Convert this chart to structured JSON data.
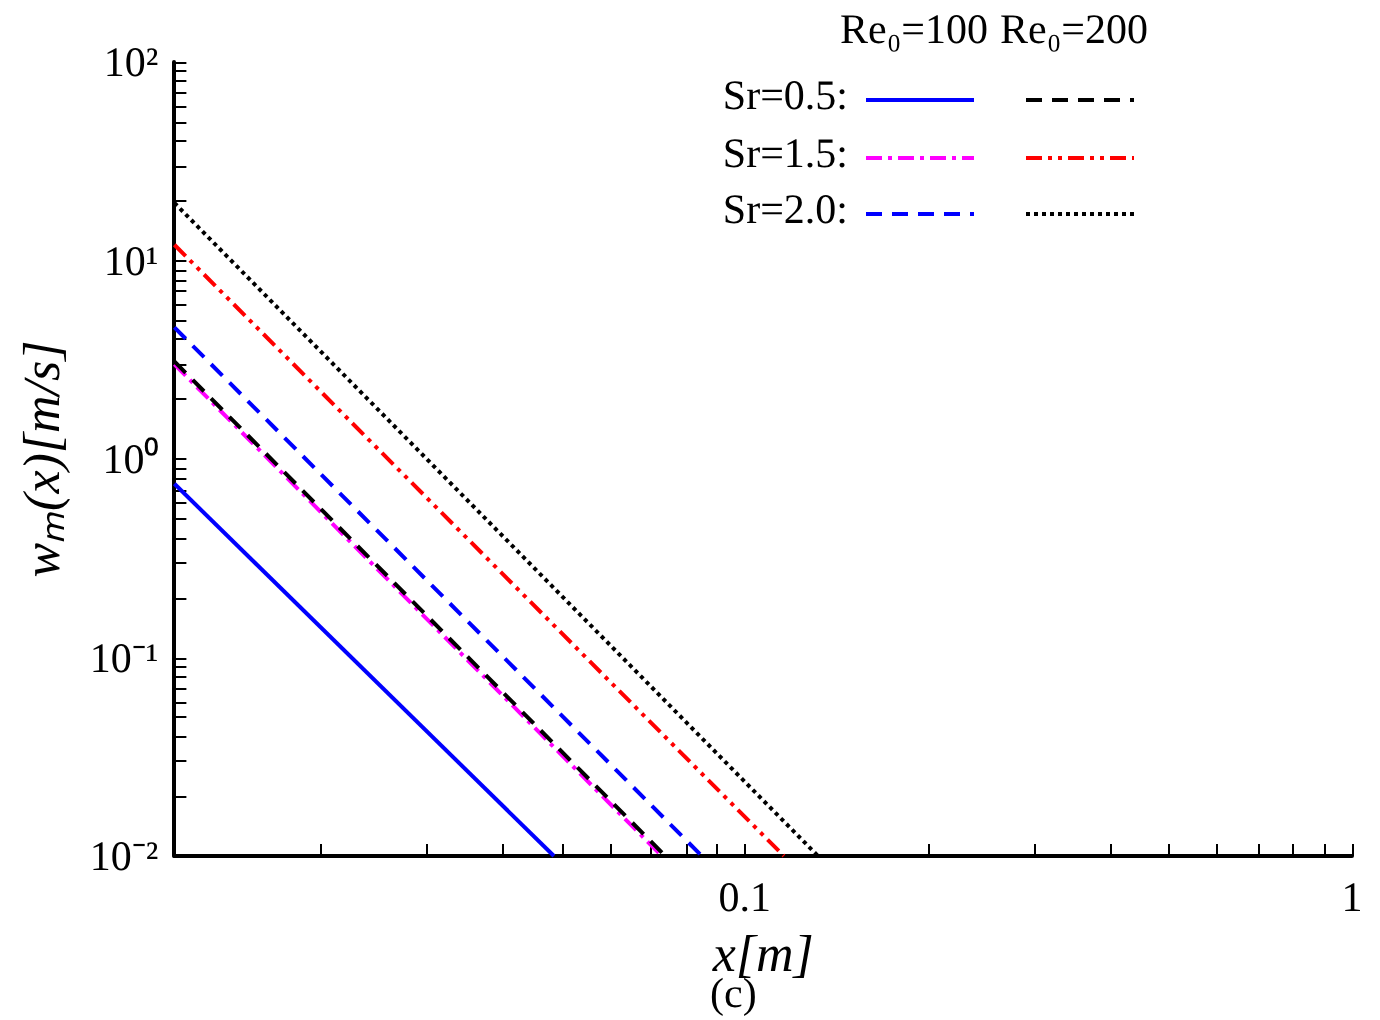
{
  "chart_data": {
    "type": "line",
    "xlabel": "x[m]",
    "ylabel": "wₘ(x)[m/s]",
    "log": "xy",
    "grid": false,
    "marker": "none",
    "xlim": [
      0.0115,
      1
    ],
    "ylim": [
      0.01,
      100
    ],
    "xticks": [
      {
        "value": 0.02,
        "label": null
      },
      {
        "value": 0.03,
        "label": null
      },
      {
        "value": 0.04,
        "label": null
      },
      {
        "value": 0.05,
        "label": null
      },
      {
        "value": 0.06,
        "label": null
      },
      {
        "value": 0.07,
        "label": null
      },
      {
        "value": 0.08,
        "label": null
      },
      {
        "value": 0.09,
        "label": null
      },
      0.1,
      {
        "value": 0.2,
        "label": null
      },
      {
        "value": 0.3,
        "label": null
      },
      {
        "value": 0.4,
        "label": null
      },
      {
        "value": 0.5,
        "label": null
      },
      {
        "value": 0.6,
        "label": null
      },
      {
        "value": 0.7,
        "label": null
      },
      {
        "value": 0.8,
        "label": null
      },
      {
        "value": 0.9,
        "label": null
      },
      1
    ],
    "yticks": [
      {
        "value": 0.01,
        "label": "10⁻²"
      },
      {
        "value": 0.02,
        "label": null
      },
      {
        "value": 0.03,
        "label": null
      },
      {
        "value": 0.04,
        "label": null
      },
      {
        "value": 0.05,
        "label": null
      },
      {
        "value": 0.06,
        "label": null
      },
      {
        "value": 0.07,
        "label": null
      },
      {
        "value": 0.08,
        "label": null
      },
      {
        "value": 0.09,
        "label": null
      },
      {
        "value": 0.1,
        "label": "10⁻¹"
      },
      {
        "value": 0.2,
        "label": null
      },
      {
        "value": 0.3,
        "label": null
      },
      {
        "value": 0.4,
        "label": null
      },
      {
        "value": 0.5,
        "label": null
      },
      {
        "value": 0.6,
        "label": null
      },
      {
        "value": 0.7,
        "label": null
      },
      {
        "value": 0.8,
        "label": null
      },
      {
        "value": 0.9,
        "label": null
      },
      {
        "value": 1,
        "label": "10⁰"
      },
      {
        "value": 2,
        "label": null
      },
      {
        "value": 3,
        "label": null
      },
      {
        "value": 4,
        "label": null
      },
      {
        "value": 5,
        "label": null
      },
      {
        "value": 6,
        "label": null
      },
      {
        "value": 7,
        "label": null
      },
      {
        "value": 8,
        "label": null
      },
      {
        "value": 9,
        "label": null
      },
      {
        "value": 10,
        "label": "10¹"
      },
      {
        "value": 20,
        "label": null
      },
      {
        "value": 30,
        "label": null
      },
      {
        "value": 40,
        "label": null
      },
      {
        "value": 50,
        "label": null
      },
      {
        "value": 60,
        "label": null
      },
      {
        "value": 70,
        "label": null
      },
      {
        "value": 80,
        "label": null
      },
      {
        "value": 90,
        "label": null
      },
      {
        "value": 100,
        "label": "10²"
      }
    ],
    "annotations": [
      "Re₀=100",
      "Re₀=200",
      "Sr=0.5:",
      "Sr=1.5:",
      "Sr=2.0:",
      "(c)"
    ],
    "series": [
      {
        "color": "#0000ff",
        "line_style": "solid",
        "x": [
          0.0115,
          0.0485
        ],
        "values": [
          0.75,
          0.01
        ]
      },
      {
        "color": "#ff00ff",
        "line_style": "dashdot",
        "x": [
          0.0115,
          0.073
        ],
        "values": [
          3,
          0.01
        ]
      },
      {
        "color": "#0000ff",
        "line_style": "dashed",
        "x": [
          0.0115,
          0.085
        ],
        "values": [
          4.6,
          0.01
        ]
      },
      {
        "color": "#000000",
        "line_style": "dashed",
        "x": [
          0.0115,
          0.074
        ],
        "values": [
          3.1,
          0.01
        ]
      },
      {
        "color": "#ff0000",
        "line_style": "dashdotdot",
        "x": [
          0.0115,
          0.116
        ],
        "values": [
          12,
          0.01
        ]
      },
      {
        "color": "#000000",
        "line_style": "dotted",
        "x": [
          0.0115,
          0.132
        ],
        "values": [
          19.5,
          0.01
        ]
      }
    ]
  }
}
